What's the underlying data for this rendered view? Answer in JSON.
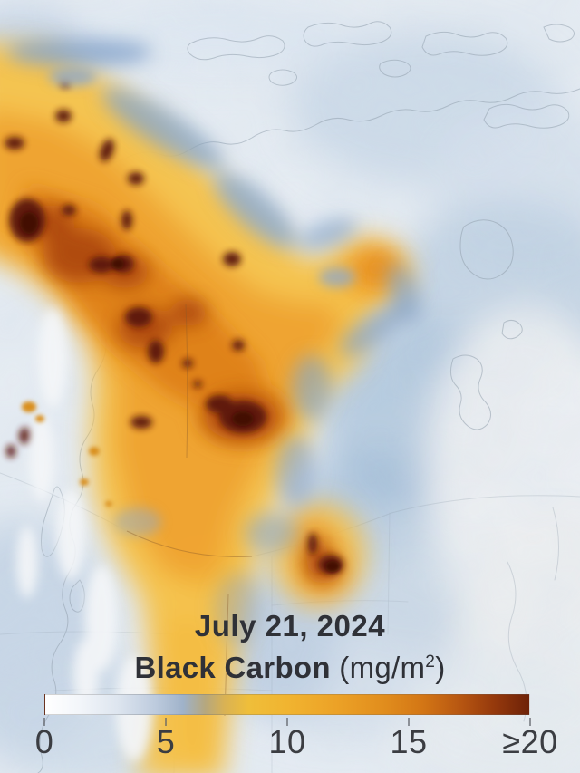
{
  "overlay": {
    "date_label": "July 21, 2024",
    "parameter_bold": "Black Carbon",
    "unit_open": " (mg/m",
    "unit_sup": "2",
    "unit_close": ")"
  },
  "colorbar": {
    "tick_labels": [
      "0",
      "5",
      "10",
      "15",
      "≥20"
    ],
    "min": 0,
    "max": 20,
    "gradient_stops": [
      {
        "at": 0.0,
        "color": "#ffffff"
      },
      {
        "at": 0.07,
        "color": "#f3f6fa"
      },
      {
        "at": 0.15,
        "color": "#dde5ef"
      },
      {
        "at": 0.23,
        "color": "#bccadd"
      },
      {
        "at": 0.285,
        "color": "#9fb2c9"
      },
      {
        "at": 0.33,
        "color": "#b5a77f"
      },
      {
        "at": 0.37,
        "color": "#d9b254"
      },
      {
        "at": 0.42,
        "color": "#efbe3a"
      },
      {
        "at": 0.5,
        "color": "#f1b430"
      },
      {
        "at": 0.6,
        "color": "#eca227"
      },
      {
        "at": 0.7,
        "color": "#e18d1d"
      },
      {
        "at": 0.78,
        "color": "#d37615"
      },
      {
        "at": 0.86,
        "color": "#b65511"
      },
      {
        "at": 0.93,
        "color": "#94380c"
      },
      {
        "at": 1.0,
        "color": "#6d2208"
      }
    ]
  },
  "map_palette": {
    "background_pale": "#e7edf3",
    "clear_sky_blue": "#a9c2da",
    "smoke_light": "#f5c24a",
    "smoke_moderate": "#efa22f",
    "smoke_heavy": "#dd7f17",
    "smoke_severe": "#a8430e",
    "smoke_extreme": "#5a1507",
    "coastline_gray": "#93a0ad",
    "label_text": "#2f3137"
  }
}
